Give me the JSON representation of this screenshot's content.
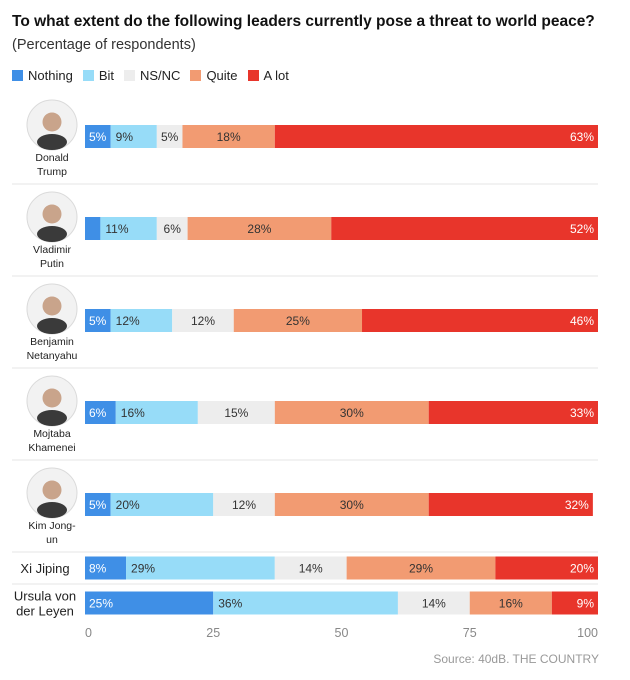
{
  "title": "To what extent do the following leaders currently pose a threat to world peace?",
  "subtitle": "(Percentage of respondents)",
  "source": "Source: 40dB. THE COUNTRY",
  "legend": [
    {
      "name": "Nothing",
      "color": "#3f8fe6"
    },
    {
      "name": "Bit",
      "color": "#97dcf8"
    },
    {
      "name": "NS/NC",
      "color": "#ededed"
    },
    {
      "name": "Quite",
      "color": "#f29b72"
    },
    {
      "name": "A lot",
      "color": "#e8352b"
    }
  ],
  "chart_data": {
    "type": "bar",
    "orientation": "horizontal",
    "stacked": true,
    "title": "To what extent do the following leaders currently pose a threat to world peace?",
    "subtitle": "(Percentage of respondents)",
    "categories": [
      {
        "label": "Donald Trump",
        "lines": [
          "Donald",
          "Trump"
        ],
        "photo": true
      },
      {
        "label": "Vladimir Putin",
        "lines": [
          "Vladimir",
          "Putin"
        ],
        "photo": true
      },
      {
        "label": "Benjamin Netanyahu",
        "lines": [
          "Benjamin",
          "Netanyahu"
        ],
        "photo": true
      },
      {
        "label": "Mojtaba Khamenei",
        "lines": [
          "Mojtaba",
          "Khamenei"
        ],
        "photo": true
      },
      {
        "label": "Kim Jong-un",
        "lines": [
          "Kim Jong-",
          "un"
        ],
        "photo": true
      },
      {
        "label": "Xi Jiping",
        "lines": [
          "Xi Jiping"
        ],
        "photo": false
      },
      {
        "label": "Ursula von der Leyen",
        "lines": [
          "Ursula von",
          "der Leyen"
        ],
        "photo": false
      }
    ],
    "series": [
      {
        "name": "Nothing",
        "color": "#3f8fe6",
        "values": [
          5,
          3,
          5,
          6,
          5,
          8,
          25
        ],
        "labels": [
          "5%",
          "",
          "5%",
          "6%",
          "5%",
          "8%",
          "25%"
        ]
      },
      {
        "name": "Bit",
        "color": "#97dcf8",
        "values": [
          9,
          11,
          12,
          16,
          20,
          29,
          36
        ],
        "labels": [
          "9%",
          "11%",
          "12%",
          "16%",
          "20%",
          "29%",
          "36%"
        ]
      },
      {
        "name": "NS/NC",
        "color": "#ededed",
        "values": [
          5,
          6,
          12,
          15,
          12,
          14,
          14
        ],
        "labels": [
          "5%",
          "6%",
          "12%",
          "15%",
          "12%",
          "14%",
          "14%"
        ]
      },
      {
        "name": "Quite",
        "color": "#f29b72",
        "values": [
          18,
          28,
          25,
          30,
          30,
          29,
          16
        ],
        "labels": [
          "18%",
          "28%",
          "25%",
          "30%",
          "30%",
          "29%",
          "16%"
        ]
      },
      {
        "name": "A lot",
        "color": "#e8352b",
        "values": [
          63,
          52,
          46,
          33,
          32,
          20,
          9
        ],
        "labels": [
          "63%",
          "52%",
          "46%",
          "33%",
          "32%",
          "20%",
          "9%"
        ]
      }
    ],
    "xlim": [
      0,
      100
    ],
    "xticks": [
      0,
      25,
      50,
      75,
      100
    ],
    "xlabel": "",
    "ylabel": "",
    "grid": false,
    "legend_position": "top-left"
  }
}
